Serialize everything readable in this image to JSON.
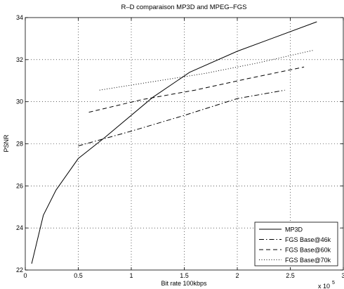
{
  "chart_data": {
    "type": "line",
    "title": "R–D comparaison MP3D and MPEG–FGS",
    "xlabel": "Bit rate 100kbps",
    "ylabel": "PSNR",
    "x_exponent_label": "x 10",
    "x_exponent_power": "5",
    "xlim": [
      0,
      300000
    ],
    "ylim": [
      22,
      34
    ],
    "xticks": [
      0,
      50000,
      100000,
      150000,
      200000,
      250000,
      300000
    ],
    "xtick_labels": [
      "0",
      "0.5",
      "1",
      "1.5",
      "2",
      "2.5",
      "3"
    ],
    "yticks": [
      22,
      24,
      26,
      28,
      30,
      32,
      34
    ],
    "ytick_labels": [
      "22",
      "24",
      "26",
      "28",
      "30",
      "32",
      "34"
    ],
    "grid": true,
    "legend_position": "bottom-right",
    "series": [
      {
        "name": "MP3D",
        "style": "solid",
        "color": "#000000",
        "x": [
          6000,
          17000,
          29000,
          50000,
          75000,
          120000,
          155000,
          200000,
          275000
        ],
        "y": [
          22.3,
          24.6,
          25.8,
          27.3,
          28.3,
          30.2,
          31.4,
          32.4,
          33.8
        ]
      },
      {
        "name": "FGS Base@46k",
        "style": "dashdot",
        "color": "#000000",
        "x": [
          50000,
          100000,
          150000,
          200000,
          245000
        ],
        "y": [
          27.9,
          28.6,
          29.35,
          30.15,
          30.55
        ]
      },
      {
        "name": "FGS Base@60k",
        "style": "dashed",
        "color": "#000000",
        "x": [
          60000,
          110000,
          160000,
          210000,
          263000
        ],
        "y": [
          29.5,
          30.1,
          30.55,
          31.1,
          31.65
        ]
      },
      {
        "name": "FGS Base@70k",
        "style": "dotted",
        "color": "#000000",
        "x": [
          70000,
          120000,
          170000,
          220000,
          272000
        ],
        "y": [
          30.55,
          30.95,
          31.35,
          31.85,
          32.45
        ]
      }
    ]
  }
}
